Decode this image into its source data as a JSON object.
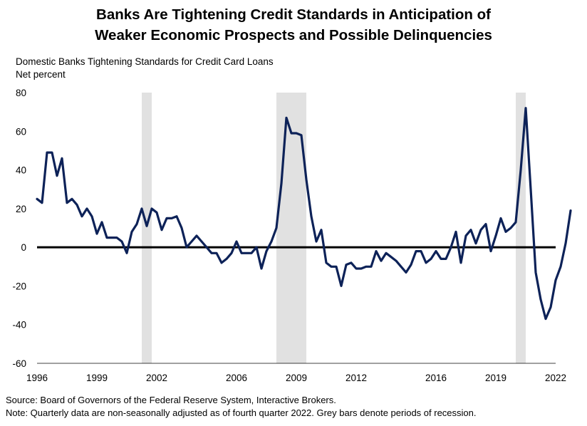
{
  "chart_data": {
    "type": "line",
    "title_line1": "Banks Are Tightening Credit Standards in Anticipation of",
    "title_line2": "Weaker Economic Prospects and Possible Delinquencies",
    "subtitle_line1": "Domestic Banks Tightening Standards for Credit Card Loans",
    "subtitle_line2": "Net percent",
    "ylim": [
      -60,
      80
    ],
    "xlim": [
      1996,
      2022
    ],
    "y_ticks": [
      "80",
      "60",
      "40",
      "20",
      "0",
      "-20",
      "-40",
      "-60"
    ],
    "x_ticks": [
      "1996",
      "1999",
      "2002",
      "2006",
      "2009",
      "2012",
      "2016",
      "2019",
      "2022"
    ],
    "grid": false,
    "legend": "none",
    "line_color": "#0d2258",
    "zero_line_color": "#000000",
    "recession_color": "#e1e1e1",
    "recessions": [
      {
        "start": 2001.25,
        "end": 2001.75
      },
      {
        "start": 2008.0,
        "end": 2009.5
      },
      {
        "start": 2020.0,
        "end": 2020.5
      }
    ],
    "series": [
      {
        "values": [
          {
            "x": 1996.0,
            "y": 25
          },
          {
            "x": 1996.25,
            "y": 23
          },
          {
            "x": 1996.5,
            "y": 49
          },
          {
            "x": 1996.75,
            "y": 49
          },
          {
            "x": 1997.0,
            "y": 37
          },
          {
            "x": 1997.25,
            "y": 46
          },
          {
            "x": 1997.5,
            "y": 23
          },
          {
            "x": 1997.75,
            "y": 25
          },
          {
            "x": 1998.0,
            "y": 22
          },
          {
            "x": 1998.25,
            "y": 16
          },
          {
            "x": 1998.5,
            "y": 20
          },
          {
            "x": 1998.75,
            "y": 16
          },
          {
            "x": 1999.0,
            "y": 7
          },
          {
            "x": 1999.25,
            "y": 13
          },
          {
            "x": 1999.5,
            "y": 5
          },
          {
            "x": 1999.75,
            "y": 5
          },
          {
            "x": 2000.0,
            "y": 5
          },
          {
            "x": 2000.25,
            "y": 3
          },
          {
            "x": 2000.5,
            "y": -3
          },
          {
            "x": 2000.75,
            "y": 8
          },
          {
            "x": 2001.0,
            "y": 12
          },
          {
            "x": 2001.25,
            "y": 20
          },
          {
            "x": 2001.5,
            "y": 11
          },
          {
            "x": 2001.75,
            "y": 20
          },
          {
            "x": 2002.0,
            "y": 18
          },
          {
            "x": 2002.25,
            "y": 9
          },
          {
            "x": 2002.5,
            "y": 15
          },
          {
            "x": 2002.75,
            "y": 15
          },
          {
            "x": 2003.0,
            "y": 16
          },
          {
            "x": 2003.25,
            "y": 10
          },
          {
            "x": 2003.5,
            "y": 0
          },
          {
            "x": 2003.75,
            "y": 3
          },
          {
            "x": 2004.0,
            "y": 6
          },
          {
            "x": 2004.25,
            "y": 3
          },
          {
            "x": 2004.5,
            "y": 0
          },
          {
            "x": 2004.75,
            "y": -3
          },
          {
            "x": 2005.0,
            "y": -3
          },
          {
            "x": 2005.25,
            "y": -8
          },
          {
            "x": 2005.5,
            "y": -6
          },
          {
            "x": 2005.75,
            "y": -3
          },
          {
            "x": 2006.0,
            "y": 3
          },
          {
            "x": 2006.25,
            "y": -3
          },
          {
            "x": 2006.5,
            "y": -3
          },
          {
            "x": 2006.75,
            "y": -3
          },
          {
            "x": 2007.0,
            "y": 0
          },
          {
            "x": 2007.25,
            "y": -11
          },
          {
            "x": 2007.5,
            "y": -2
          },
          {
            "x": 2007.75,
            "y": 3
          },
          {
            "x": 2008.0,
            "y": 10
          },
          {
            "x": 2008.25,
            "y": 33
          },
          {
            "x": 2008.5,
            "y": 67
          },
          {
            "x": 2008.75,
            "y": 59
          },
          {
            "x": 2009.0,
            "y": 59
          },
          {
            "x": 2009.25,
            "y": 58
          },
          {
            "x": 2009.5,
            "y": 35
          },
          {
            "x": 2009.75,
            "y": 16
          },
          {
            "x": 2010.0,
            "y": 3
          },
          {
            "x": 2010.25,
            "y": 9
          },
          {
            "x": 2010.5,
            "y": -8
          },
          {
            "x": 2010.75,
            "y": -10
          },
          {
            "x": 2011.0,
            "y": -10
          },
          {
            "x": 2011.25,
            "y": -20
          },
          {
            "x": 2011.5,
            "y": -9
          },
          {
            "x": 2011.75,
            "y": -8
          },
          {
            "x": 2012.0,
            "y": -11
          },
          {
            "x": 2012.25,
            "y": -11
          },
          {
            "x": 2012.5,
            "y": -10
          },
          {
            "x": 2012.75,
            "y": -10
          },
          {
            "x": 2013.0,
            "y": -2
          },
          {
            "x": 2013.25,
            "y": -7
          },
          {
            "x": 2013.5,
            "y": -3
          },
          {
            "x": 2013.75,
            "y": -5
          },
          {
            "x": 2014.0,
            "y": -7
          },
          {
            "x": 2014.25,
            "y": -10
          },
          {
            "x": 2014.5,
            "y": -13
          },
          {
            "x": 2014.75,
            "y": -9
          },
          {
            "x": 2015.0,
            "y": -2
          },
          {
            "x": 2015.25,
            "y": -2
          },
          {
            "x": 2015.5,
            "y": -8
          },
          {
            "x": 2015.75,
            "y": -6
          },
          {
            "x": 2016.0,
            "y": -2
          },
          {
            "x": 2016.25,
            "y": -6
          },
          {
            "x": 2016.5,
            "y": -6
          },
          {
            "x": 2016.75,
            "y": 0
          },
          {
            "x": 2017.0,
            "y": 8
          },
          {
            "x": 2017.25,
            "y": -8
          },
          {
            "x": 2017.5,
            "y": 6
          },
          {
            "x": 2017.75,
            "y": 9
          },
          {
            "x": 2018.0,
            "y": 2
          },
          {
            "x": 2018.25,
            "y": 9
          },
          {
            "x": 2018.5,
            "y": 12
          },
          {
            "x": 2018.75,
            "y": -2
          },
          {
            "x": 2019.0,
            "y": 6
          },
          {
            "x": 2019.25,
            "y": 15
          },
          {
            "x": 2019.5,
            "y": 8
          },
          {
            "x": 2019.75,
            "y": 10
          },
          {
            "x": 2020.0,
            "y": 13
          },
          {
            "x": 2020.25,
            "y": 40
          },
          {
            "x": 2020.5,
            "y": 72
          },
          {
            "x": 2020.75,
            "y": 30
          },
          {
            "x": 2021.0,
            "y": -13
          },
          {
            "x": 2021.25,
            "y": -27
          },
          {
            "x": 2021.5,
            "y": -37
          },
          {
            "x": 2021.75,
            "y": -31
          },
          {
            "x": 2022.0,
            "y": -17
          },
          {
            "x": 2022.25,
            "y": -10
          },
          {
            "x": 2022.5,
            "y": 2
          },
          {
            "x": 2022.75,
            "y": 19
          }
        ]
      }
    ]
  },
  "footnotes": {
    "source": "Source: Board of Governors of the Federal Reserve System, Interactive Brokers.",
    "note": "Note: Quarterly data are non-seasonally adjusted as of fourth quarter 2022. Grey bars denote periods of recession."
  }
}
